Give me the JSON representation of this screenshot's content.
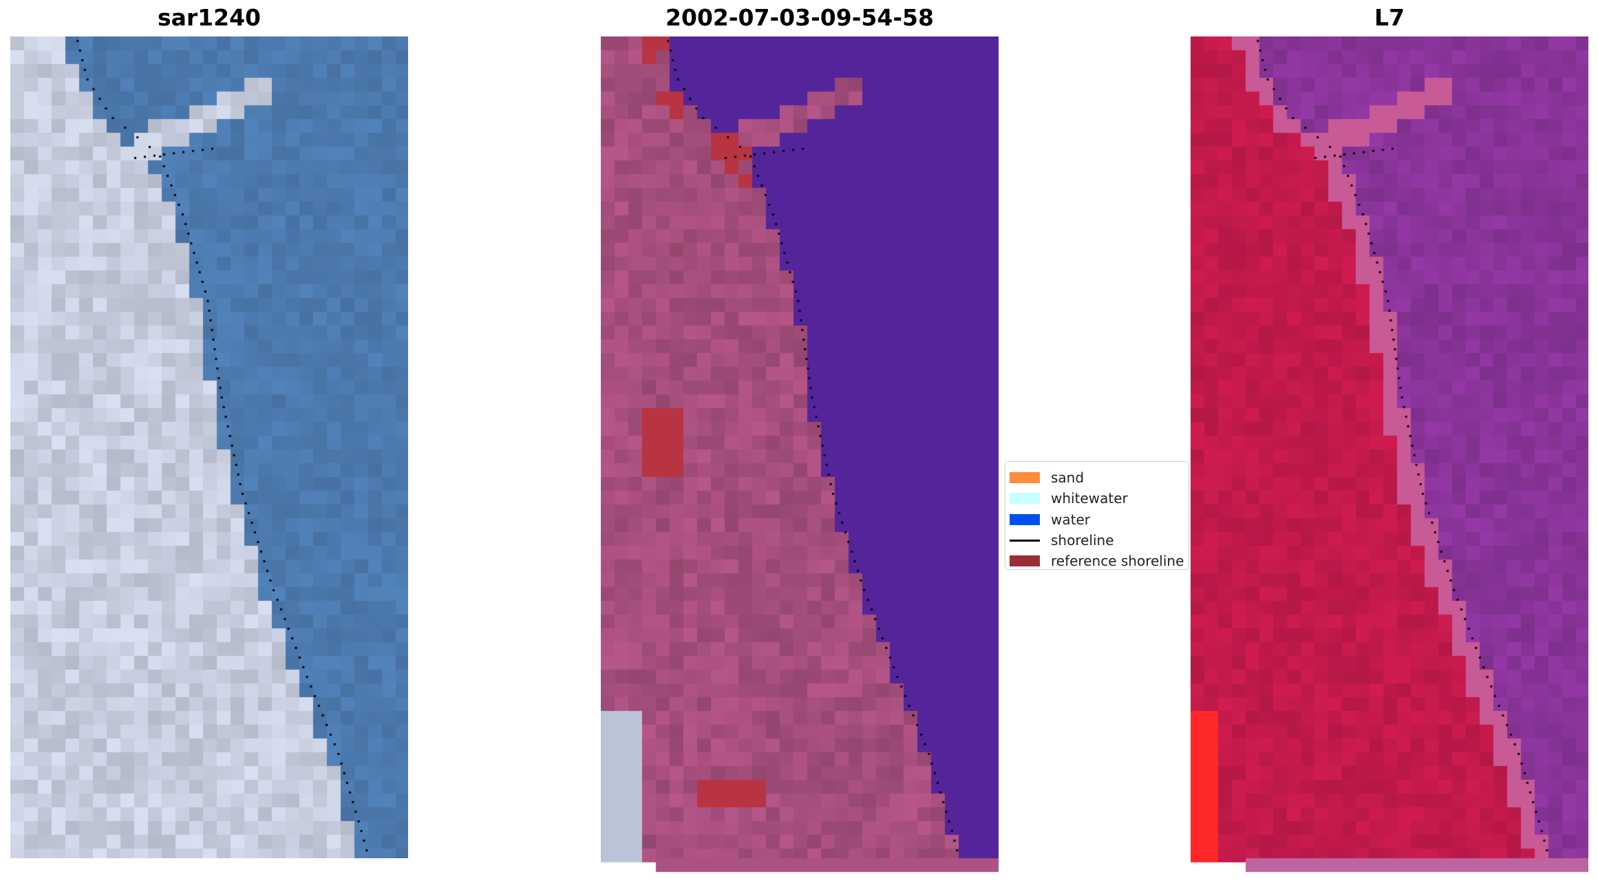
{
  "panels": [
    {
      "title": "sar1240"
    },
    {
      "title": "2002-07-03-09-54-58"
    },
    {
      "title": "L7"
    }
  ],
  "legend": {
    "items": [
      {
        "label": "sand",
        "color": "#ff8c3c",
        "kind": "patch"
      },
      {
        "label": "whitewater",
        "color": "#c8ffff",
        "kind": "patch"
      },
      {
        "label": "water",
        "color": "#0050f0",
        "kind": "patch"
      },
      {
        "label": "shoreline",
        "color": "#000000",
        "kind": "line"
      },
      {
        "label": "reference shoreline",
        "color": "#9b2d35",
        "kind": "patch"
      }
    ]
  },
  "colors": {
    "rgb_sea": "#4d7bb0",
    "rgb_land": "#c9cfe0",
    "class_water": "#54259a",
    "class_land": "#a9507f",
    "class_red": "#b83443",
    "nir_land": "#c41a4c",
    "nir_water": "#8f36a0"
  }
}
